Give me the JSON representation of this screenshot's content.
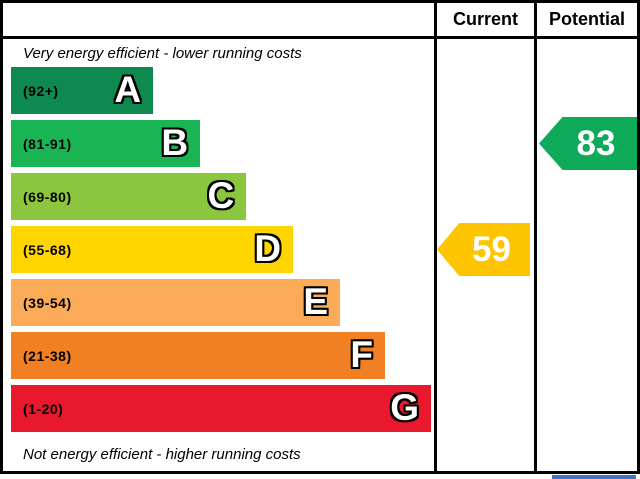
{
  "header": {
    "current": "Current",
    "potential": "Potential"
  },
  "top_note": "Very energy efficient - lower running costs",
  "bottom_note": "Not energy efficient - higher running costs",
  "chart_data": {
    "type": "bar",
    "title": "Energy efficiency rating chart (EPC)",
    "legend_position": "none",
    "grid": false,
    "bands": [
      {
        "letter": "A",
        "range_label": "(92+)",
        "min": 92,
        "max": 100,
        "color": "#0e8a50",
        "width_pct": 33.6
      },
      {
        "letter": "B",
        "range_label": "(81-91)",
        "min": 81,
        "max": 91,
        "color": "#1ab455",
        "width_pct": 44.7
      },
      {
        "letter": "C",
        "range_label": "(69-80)",
        "min": 69,
        "max": 80,
        "color": "#8cc63f",
        "width_pct": 55.6
      },
      {
        "letter": "D",
        "range_label": "(55-68)",
        "min": 55,
        "max": 68,
        "color": "#ffd500",
        "width_pct": 66.7
      },
      {
        "letter": "E",
        "range_label": "(39-54)",
        "min": 39,
        "max": 54,
        "color": "#fbab57",
        "width_pct": 77.8
      },
      {
        "letter": "F",
        "range_label": "(21-38)",
        "min": 21,
        "max": 38,
        "color": "#f08023",
        "width_pct": 88.4
      },
      {
        "letter": "G",
        "range_label": "(1-20)",
        "min": 1,
        "max": 20,
        "color": "#e8192c",
        "width_pct": 99.3
      }
    ],
    "current": {
      "value": 59,
      "band": "D",
      "arrow_color": "#fcc500"
    },
    "potential": {
      "value": 83,
      "band": "B",
      "arrow_color": "#0fa95a"
    },
    "value_range": [
      1,
      100
    ]
  },
  "decor": {
    "blue_strip_color": "#4472c4"
  }
}
